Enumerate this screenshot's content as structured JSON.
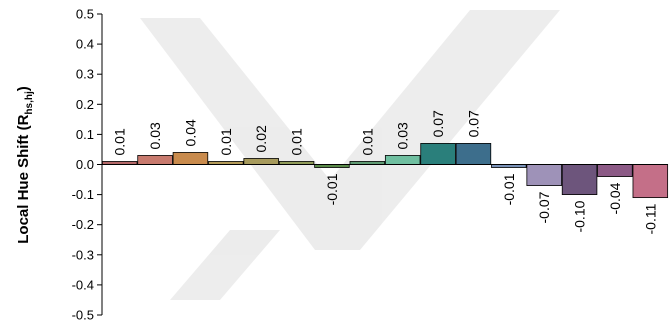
{
  "chart_data": {
    "type": "bar",
    "ylabel": "Local Hue Shift (R",
    "ylabel_sub": "hs,hj",
    "ylabel_close": ")",
    "ylim": [
      -0.5,
      0.5
    ],
    "yticks": [
      "0.5",
      "0.4",
      "0.3",
      "0.2",
      "0.1",
      "0.0",
      "-0.1",
      "-0.2",
      "-0.3",
      "-0.4",
      "-0.5"
    ],
    "grid": false,
    "legend": "none",
    "values": [
      0.01,
      0.03,
      0.04,
      0.01,
      0.02,
      0.01,
      -0.01,
      0.01,
      0.03,
      0.07,
      0.07,
      -0.01,
      -0.07,
      -0.1,
      -0.04,
      -0.11
    ],
    "labels": [
      "0.01",
      "0.03",
      "0.04",
      "0.01",
      "0.02",
      "0.01",
      "-0.01",
      "0.01",
      "0.03",
      "0.07",
      "0.07",
      "-0.01",
      "-0.07",
      "-0.10",
      "-0.04",
      "-0.11"
    ],
    "colors": [
      "#b46868",
      "#c87a6e",
      "#c98b4d",
      "#b39a58",
      "#a69a5c",
      "#8f9a58",
      "#5a8a4a",
      "#5f9a72",
      "#6fbfa0",
      "#2a7f7b",
      "#3d6e8c",
      "#7a92b8",
      "#9e92b8",
      "#6d557c",
      "#8c5a86",
      "#c46f88"
    ]
  }
}
